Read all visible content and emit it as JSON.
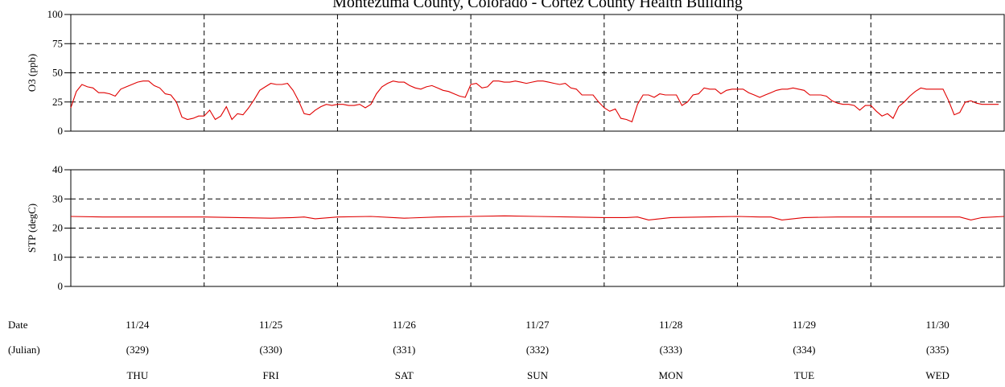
{
  "title": "Montezuma County, Colorado - Cortez County Health Building",
  "chart_data": [
    {
      "type": "line",
      "ylabel": "O3 (ppb)",
      "ylim": [
        0,
        100
      ],
      "yticks": [
        0,
        25,
        50,
        75,
        100
      ],
      "grid": true,
      "xlim": [
        0,
        168
      ],
      "series": [
        {
          "color": "#e00000",
          "x": [
            0,
            1,
            2,
            3,
            4,
            5,
            6,
            7,
            8,
            9,
            10,
            11,
            12,
            13,
            14,
            15,
            16,
            17,
            18,
            19,
            20,
            21,
            22,
            23,
            24,
            25,
            26,
            27,
            28,
            29,
            30,
            31,
            32,
            33,
            34,
            35,
            36,
            37,
            38,
            39,
            40,
            41,
            42,
            43,
            44,
            45,
            46,
            47,
            48,
            49,
            50,
            51,
            52,
            53,
            54,
            55,
            56,
            57,
            58,
            59,
            60,
            61,
            62,
            63,
            64,
            65,
            66,
            67,
            68,
            69,
            70,
            71,
            72,
            73,
            74,
            75,
            76,
            77,
            78,
            79,
            80,
            81,
            82,
            83,
            84,
            85,
            86,
            87,
            88,
            89,
            90,
            91,
            92,
            93,
            94,
            95,
            96,
            97,
            98,
            99,
            100,
            101,
            102,
            103,
            104,
            105,
            106,
            107,
            108,
            109,
            110,
            111,
            112,
            113,
            114,
            115,
            116,
            117,
            118,
            119,
            120,
            121,
            122,
            123,
            124,
            125,
            126,
            127,
            128,
            129,
            130,
            131,
            132,
            133,
            134,
            135,
            136,
            137,
            138,
            139,
            140,
            141,
            142,
            143,
            144,
            145,
            146,
            147,
            148,
            149,
            150,
            151,
            152,
            153,
            154,
            155,
            156,
            157,
            158,
            159,
            160,
            161,
            162,
            163,
            164,
            165,
            166,
            167
          ],
          "values": [
            20,
            34,
            40,
            38,
            37,
            33,
            33,
            32,
            30,
            36,
            38,
            40,
            42,
            43,
            43,
            39,
            37,
            32,
            31,
            25,
            12,
            10,
            11,
            13,
            13,
            18,
            10,
            13,
            21,
            10,
            15,
            14,
            20,
            27,
            35,
            38,
            41,
            40,
            40,
            41,
            35,
            26,
            15,
            14,
            18,
            21,
            23,
            22,
            23,
            23,
            22,
            22,
            23,
            20,
            23,
            32,
            38,
            41,
            43,
            42,
            42,
            39,
            37,
            36,
            38,
            39,
            37,
            35,
            34,
            32,
            30,
            29,
            40,
            41,
            37,
            38,
            43,
            43,
            42,
            42,
            43,
            42,
            41,
            42,
            43,
            43,
            42,
            41,
            40,
            41,
            37,
            36,
            31,
            31,
            31,
            25,
            20,
            17,
            19,
            11,
            10,
            8,
            23,
            31,
            31,
            29,
            32,
            31,
            31,
            31,
            22,
            25,
            31,
            32,
            37,
            36,
            36,
            32,
            35,
            36,
            36,
            36,
            33,
            31,
            29,
            31,
            33,
            35,
            36,
            36,
            37,
            36,
            35,
            31,
            31,
            31,
            30,
            26,
            24,
            23,
            23,
            22,
            18,
            22,
            22,
            17,
            13,
            15,
            11,
            21,
            25,
            30,
            34,
            37,
            36,
            36,
            36,
            36,
            26,
            14,
            16,
            25,
            26,
            24,
            23,
            23,
            23,
            23
          ]
        }
      ]
    },
    {
      "type": "line",
      "ylabel": "STP (degC)",
      "ylim": [
        0,
        40
      ],
      "yticks": [
        0,
        10,
        20,
        30,
        40
      ],
      "grid": true,
      "xlim": [
        0,
        168
      ],
      "series": [
        {
          "color": "#e00000",
          "x": [
            0,
            6,
            12,
            18,
            24,
            30,
            36,
            40,
            42,
            44,
            48,
            54,
            58,
            60,
            66,
            72,
            78,
            84,
            90,
            96,
            100,
            102,
            104,
            108,
            114,
            120,
            124,
            126,
            128,
            132,
            138,
            144,
            150,
            156,
            160,
            162,
            164,
            168
          ],
          "values": [
            24,
            23.8,
            23.8,
            23.8,
            23.8,
            23.6,
            23.4,
            23.6,
            23.8,
            23.2,
            23.8,
            24,
            23.6,
            23.4,
            23.8,
            24,
            24.2,
            24,
            23.8,
            23.6,
            23.6,
            23.8,
            22.8,
            23.6,
            23.8,
            24,
            23.8,
            23.8,
            22.8,
            23.6,
            23.8,
            23.8,
            23.8,
            23.8,
            23.8,
            22.8,
            23.6,
            24
          ]
        }
      ]
    }
  ],
  "date_axis": {
    "row_labels": [
      "Date",
      "(Julian)"
    ],
    "days": [
      {
        "date": "11/24",
        "julian": "(329)",
        "weekday": "THU"
      },
      {
        "date": "11/25",
        "julian": "(330)",
        "weekday": "FRI"
      },
      {
        "date": "11/26",
        "julian": "(331)",
        "weekday": "SAT"
      },
      {
        "date": "11/27",
        "julian": "(332)",
        "weekday": "SUN"
      },
      {
        "date": "11/28",
        "julian": "(333)",
        "weekday": "MON"
      },
      {
        "date": "11/29",
        "julian": "(334)",
        "weekday": "TUE"
      },
      {
        "date": "11/30",
        "julian": "(335)",
        "weekday": "WED"
      }
    ]
  }
}
